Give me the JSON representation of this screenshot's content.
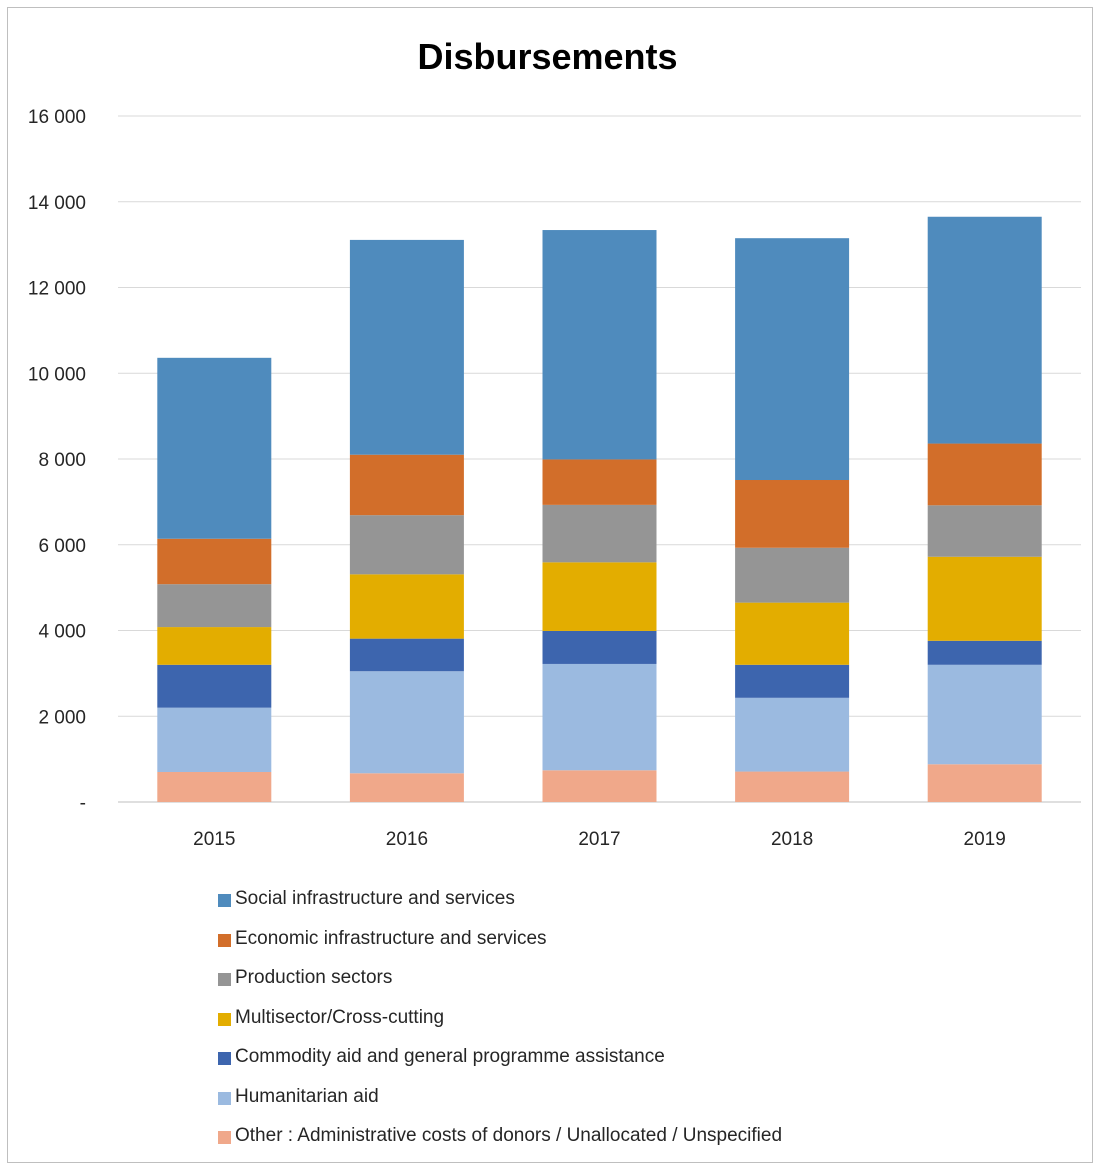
{
  "chart_data": {
    "type": "bar",
    "stacked": true,
    "title": "Disbursements",
    "xlabel": "",
    "ylabel": "",
    "categories": [
      "2015",
      "2016",
      "2017",
      "2018",
      "2019"
    ],
    "ylim": [
      0,
      16000
    ],
    "y_ticks": [
      0,
      2000,
      4000,
      6000,
      8000,
      10000,
      12000,
      14000,
      16000
    ],
    "y_tick_labels": [
      "-",
      "2 000",
      "4 000",
      "6 000",
      "8 000",
      "10 000",
      "12 000",
      "14 000",
      "16 000"
    ],
    "grid": "horizontal",
    "legend_position": "bottom",
    "series": [
      {
        "name": "Other : Administrative costs of donors / Unallocated / Unspecified",
        "color": "#f0a88a",
        "values": [
          700,
          670,
          740,
          710,
          880
        ]
      },
      {
        "name": "Humanitarian aid",
        "color": "#9bbae0",
        "values": [
          1500,
          2380,
          2480,
          1720,
          2320
        ]
      },
      {
        "name": "Commodity aid and general programme assistance",
        "color": "#3d65ae",
        "values": [
          1000,
          760,
          770,
          770,
          560
        ]
      },
      {
        "name": "Multisector/Cross-cutting",
        "color": "#e3ad00",
        "values": [
          880,
          1500,
          1600,
          1450,
          1960
        ]
      },
      {
        "name": "Production sectors",
        "color": "#959595",
        "values": [
          1000,
          1380,
          1340,
          1280,
          1200
        ]
      },
      {
        "name": "Economic infrastructure and services",
        "color": "#d26e2a",
        "values": [
          1060,
          1410,
          1060,
          1580,
          1440
        ]
      },
      {
        "name": "Social infrastructure and services",
        "color": "#4f8bbd",
        "values": [
          4220,
          5010,
          5350,
          5640,
          5290
        ]
      }
    ]
  }
}
